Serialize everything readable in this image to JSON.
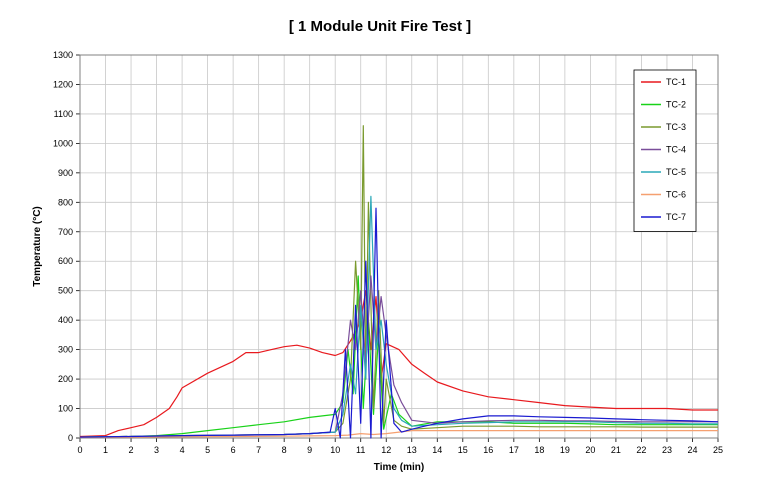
{
  "chart_data": {
    "type": "line",
    "title": "[ 1 Module Unit Fire  Test ]",
    "xlabel": "Time (min)",
    "ylabel": "Temperature (°C)",
    "xlim": [
      0,
      25
    ],
    "ylim": [
      0,
      1300
    ],
    "x_ticks": [
      "0",
      "1",
      "2",
      "3",
      "4",
      "5",
      "6",
      "7",
      "8",
      "9",
      "10",
      "11",
      "12",
      "13",
      "14",
      "15",
      "16",
      "17",
      "18",
      "19",
      "20",
      "21",
      "22",
      "23",
      "24",
      "25"
    ],
    "y_ticks": [
      "0",
      "100",
      "200",
      "300",
      "400",
      "500",
      "600",
      "700",
      "800",
      "900",
      "1000",
      "1100",
      "1200",
      "1300"
    ],
    "grid": true,
    "legend_position": "top-right",
    "series": [
      {
        "name": "TC-1",
        "color": "#e8191e",
        "x": [
          0,
          1,
          1.5,
          2,
          2.5,
          3,
          3.5,
          3.8,
          4,
          5,
          6,
          6.5,
          7,
          7.5,
          8,
          8.5,
          9,
          9.5,
          10,
          10.3,
          10.6,
          10.8,
          11,
          11.2,
          11.4,
          11.6,
          11.8,
          12,
          12.5,
          13,
          13.5,
          14,
          15,
          16,
          17,
          18,
          19,
          20,
          21,
          22,
          23,
          24,
          25
        ],
        "y": [
          5,
          8,
          25,
          35,
          45,
          70,
          100,
          140,
          170,
          220,
          260,
          290,
          290,
          300,
          310,
          315,
          305,
          290,
          280,
          290,
          330,
          360,
          400,
          500,
          300,
          480,
          200,
          320,
          300,
          250,
          220,
          190,
          160,
          140,
          130,
          120,
          110,
          105,
          100,
          100,
          100,
          95,
          95
        ]
      },
      {
        "name": "TC-2",
        "color": "#19d219",
        "x": [
          0,
          2,
          3,
          4,
          5,
          6,
          7,
          8,
          9,
          9.5,
          10,
          10.3,
          10.5,
          10.7,
          10.9,
          11.1,
          11.3,
          11.5,
          11.7,
          11.9,
          12.2,
          12.5,
          13,
          14,
          15,
          16,
          17,
          18,
          19,
          20,
          21,
          22,
          23,
          24,
          25
        ],
        "y": [
          3,
          5,
          8,
          15,
          25,
          35,
          45,
          55,
          70,
          75,
          80,
          120,
          300,
          150,
          550,
          100,
          400,
          80,
          350,
          30,
          150,
          80,
          40,
          55,
          55,
          55,
          50,
          50,
          50,
          48,
          45,
          45,
          45,
          45,
          45
        ]
      },
      {
        "name": "TC-3",
        "color": "#7a9a2e",
        "x": [
          0,
          2,
          4,
          6,
          8,
          9,
          10,
          10.3,
          10.6,
          10.8,
          11,
          11.1,
          11.2,
          11.3,
          11.5,
          11.7,
          11.9,
          12,
          12.3,
          12.6,
          13,
          14,
          15,
          16,
          17,
          18,
          19,
          20,
          21,
          22,
          23,
          24,
          25
        ],
        "y": [
          3,
          5,
          8,
          10,
          12,
          15,
          20,
          50,
          200,
          600,
          300,
          1060,
          200,
          800,
          100,
          500,
          50,
          200,
          60,
          40,
          30,
          35,
          40,
          40,
          40,
          38,
          38,
          38,
          38,
          37,
          37,
          37,
          37
        ]
      },
      {
        "name": "TC-4",
        "color": "#7a4e9a",
        "x": [
          0,
          2,
          4,
          6,
          8,
          9,
          10,
          10.3,
          10.6,
          10.8,
          11,
          11.2,
          11.4,
          11.6,
          11.8,
          12,
          12.3,
          12.6,
          13,
          14,
          15,
          16,
          17,
          18,
          19,
          20,
          21,
          22,
          23,
          24,
          25
        ],
        "y": [
          3,
          5,
          8,
          10,
          12,
          15,
          20,
          150,
          400,
          300,
          500,
          250,
          550,
          300,
          480,
          350,
          180,
          120,
          60,
          50,
          55,
          58,
          60,
          60,
          58,
          58,
          56,
          55,
          55,
          55,
          55
        ]
      },
      {
        "name": "TC-5",
        "color": "#2aa8b8",
        "x": [
          0,
          2,
          4,
          6,
          8,
          9,
          10,
          10.3,
          10.6,
          10.8,
          11,
          11.2,
          11.4,
          11.6,
          11.8,
          12,
          12.3,
          12.6,
          13,
          14,
          15,
          16,
          17,
          18,
          19,
          20,
          21,
          22,
          23,
          24,
          25
        ],
        "y": [
          3,
          5,
          8,
          10,
          12,
          15,
          20,
          80,
          250,
          150,
          450,
          200,
          820,
          300,
          400,
          250,
          100,
          60,
          40,
          45,
          50,
          52,
          55,
          55,
          55,
          55,
          52,
          50,
          50,
          48,
          48
        ]
      },
      {
        "name": "TC-6",
        "color": "#f5a070",
        "x": [
          0,
          2,
          4,
          6,
          8,
          9,
          10,
          10.5,
          11,
          11.5,
          12,
          12.5,
          13,
          14,
          15,
          16,
          17,
          18,
          19,
          20,
          21,
          22,
          23,
          24,
          25
        ],
        "y": [
          2,
          3,
          4,
          5,
          6,
          7,
          8,
          10,
          15,
          12,
          15,
          20,
          25,
          25,
          25,
          25,
          25,
          25,
          25,
          25,
          25,
          25,
          25,
          25,
          25
        ]
      },
      {
        "name": "TC-7",
        "color": "#1a1ad0",
        "x": [
          0,
          2,
          4,
          6,
          8,
          9,
          9.8,
          10,
          10.2,
          10.4,
          10.6,
          10.8,
          11,
          11.2,
          11.4,
          11.6,
          11.8,
          12,
          12.3,
          12.6,
          13,
          13.5,
          14,
          15,
          16,
          17,
          18,
          19,
          20,
          21,
          22,
          23,
          24,
          25
        ],
        "y": [
          3,
          5,
          8,
          10,
          12,
          15,
          20,
          100,
          0,
          300,
          0,
          450,
          50,
          600,
          0,
          780,
          0,
          400,
          50,
          20,
          30,
          40,
          50,
          65,
          75,
          75,
          72,
          70,
          68,
          65,
          62,
          60,
          58,
          55
        ]
      }
    ]
  }
}
